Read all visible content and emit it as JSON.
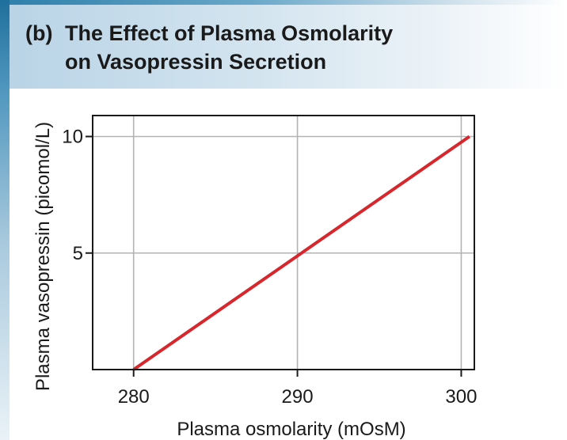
{
  "figure": {
    "panel_label": "(b)",
    "title_line1": "The Effect of Plasma Osmolarity",
    "title_line2": "on Vasopressin Secretion"
  },
  "colors": {
    "series": "#d7272d",
    "grid": "#b3b3b3",
    "axes": "#1a1a1a",
    "header_accent": "#2d7fab"
  },
  "chart_data": {
    "type": "line",
    "title": "The Effect of Plasma Osmolarity on Vasopressin Secretion",
    "xlabel": "Plasma osmolarity (mOsM)",
    "ylabel": "Plasma vasopressin (picomol/L)",
    "xlim": [
      277.5,
      300.8
    ],
    "ylim": [
      0,
      10.9
    ],
    "xticks": [
      280,
      290,
      300
    ],
    "xtick_labels": [
      "280",
      "290",
      "300"
    ],
    "yticks": [
      5,
      10
    ],
    "ytick_labels": [
      "5",
      "10"
    ],
    "grid": true,
    "legend": "none",
    "series": [
      {
        "x": [
          280,
          300.5
        ],
        "y": [
          0,
          10
        ]
      }
    ]
  }
}
